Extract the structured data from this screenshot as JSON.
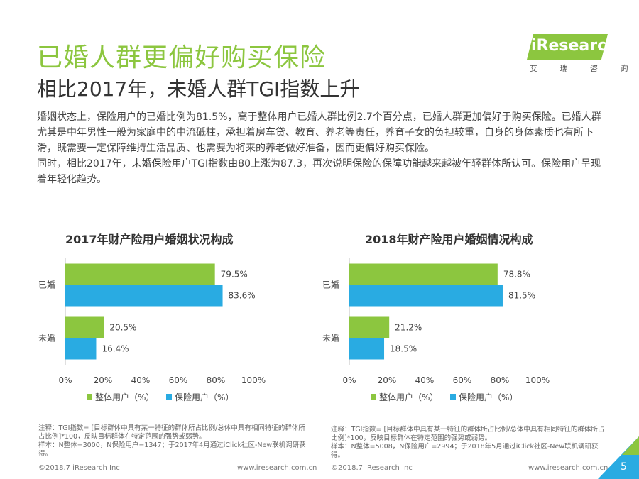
{
  "title": "已婚人群更偏好购买保险",
  "subtitle": "相比2017年，未婚人群TGI指数上升",
  "logo": {
    "text": "iResearch",
    "sub": "艾 瑞 咨 询"
  },
  "body": {
    "p1": "婚姻状态上，保险用户的已婚比例为81.5%，高于整体用户已婚人群比例2.7个百分点，已婚人群更加偏好于购买保险。已婚人群尤其是中年男性一般为家庭中的中流砥柱，承担着房车贷、教育、养老等责任，养育子女的负担较重，自身的身体素质也有所下滑，既需要一定保障维持生活品质、也需要为将来的养老做好准备，因而更偏好购买保险。",
    "p2": "同时，相比2017年，未婚保险用户TGI指数由80上涨为87.3，再次说明保险的保障功能越来越被年轻群体所认可。保险用户呈现着年轻化趋势。"
  },
  "colors": {
    "accent": "#8cc63f",
    "series1": "#8cc63f",
    "series2": "#29abe2"
  },
  "chart_data": [
    {
      "type": "bar",
      "orientation": "horizontal",
      "title": "2017年财产险用户婚姻状况构成",
      "categories": [
        "已婚",
        "未婚"
      ],
      "series": [
        {
          "name": "整体用户（%）",
          "values": [
            79.5,
            20.5
          ]
        },
        {
          "name": "保险用户（%）",
          "values": [
            83.6,
            16.4
          ]
        }
      ],
      "ticks": [
        "0%",
        "20%",
        "40%",
        "60%",
        "80%",
        "100%"
      ],
      "xlim": [
        0,
        100
      ]
    },
    {
      "type": "bar",
      "orientation": "horizontal",
      "title": "2018年财产险用户婚姻情况构成",
      "categories": [
        "已婚",
        "未婚"
      ],
      "series": [
        {
          "name": "整体用户（%）",
          "values": [
            78.8,
            21.2
          ]
        },
        {
          "name": "保险用户（%）",
          "values": [
            81.5,
            18.5
          ]
        }
      ],
      "ticks": [
        "0%",
        "20%",
        "40%",
        "60%",
        "80%",
        "100%"
      ],
      "xlim": [
        0,
        100
      ]
    }
  ],
  "notes": {
    "left": "注释：TGI指数= [目标群体中具有某一特征的群体所占比例/总体中具有相同特征的群体所占比例]*100，反映目标群体在特定范围的强势或弱势。\n样本：N整体=3000，N保险用户=1347；于2017年4月通过iClick社区-New联机调研获得。",
    "right": "注释：TGI指数= [目标群体中具有某一特征的群体所占比例/总体中具有相同特征的群体所占比例]*100，反映目标群体在特定范围的强势或弱势。\n样本：N整体=5008，N保险用户=2994；于2018年5月通过iClick社区-New联机调研获得。"
  },
  "footer": {
    "left_copyright": "©2018.7 iResearch Inc",
    "left_url": "www.iresearch.com.cn",
    "right_copyright": "©2018.7 iResearch Inc",
    "right_url": "www.iresearch.com.cn",
    "page": "5"
  }
}
